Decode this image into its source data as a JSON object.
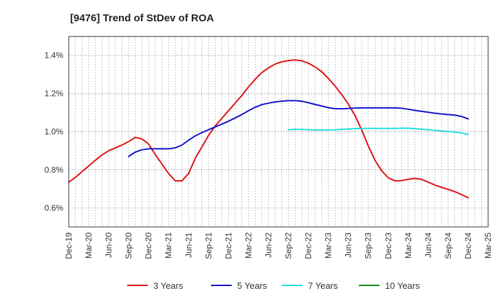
{
  "chart_data": {
    "type": "line",
    "title": "[9476]  Trend of StDev of ROA",
    "xlabel": "",
    "ylabel": "",
    "grid": true,
    "legend_position": "bottom",
    "x_ticks": [
      "Dec-19",
      "Mar-20",
      "Jun-20",
      "Sep-20",
      "Dec-20",
      "Mar-21",
      "Jun-21",
      "Sep-21",
      "Dec-21",
      "Mar-22",
      "Jun-22",
      "Sep-22",
      "Dec-22",
      "Mar-23",
      "Jun-23",
      "Sep-23",
      "Dec-23",
      "Mar-24",
      "Jun-24",
      "Sep-24",
      "Dec-24",
      "Mar-25"
    ],
    "y_ticks": [
      0.6,
      0.8,
      1.0,
      1.2,
      1.4
    ],
    "y_tick_labels": [
      "0.6%",
      "0.8%",
      "1.0%",
      "1.2%",
      "1.4%"
    ],
    "ylim": [
      0.5,
      1.5
    ],
    "series": [
      {
        "name": "3 Years",
        "color": "#dd1111",
        "values": [
          [
            "Dec-19",
            0.735
          ],
          [
            "Jan-20",
            0.76
          ],
          [
            "Feb-20",
            0.79
          ],
          [
            "Mar-20",
            0.82
          ],
          [
            "Apr-20",
            0.85
          ],
          [
            "May-20",
            0.878
          ],
          [
            "Jun-20",
            0.9
          ],
          [
            "Jul-20",
            0.915
          ],
          [
            "Aug-20",
            0.93
          ],
          [
            "Sep-20",
            0.948
          ],
          [
            "Oct-20",
            0.97
          ],
          [
            "Nov-20",
            0.962
          ],
          [
            "Dec-20",
            0.935
          ],
          [
            "Jan-21",
            0.88
          ],
          [
            "Feb-21",
            0.83
          ],
          [
            "Mar-21",
            0.78
          ],
          [
            "Apr-21",
            0.742
          ],
          [
            "May-21",
            0.742
          ],
          [
            "Jun-21",
            0.78
          ],
          [
            "Jul-21",
            0.86
          ],
          [
            "Aug-21",
            0.92
          ],
          [
            "Sep-21",
            0.98
          ],
          [
            "Oct-21",
            1.03
          ],
          [
            "Nov-21",
            1.07
          ],
          [
            "Dec-21",
            1.11
          ],
          [
            "Jan-22",
            1.15
          ],
          [
            "Feb-22",
            1.19
          ],
          [
            "Mar-22",
            1.235
          ],
          [
            "Apr-22",
            1.275
          ],
          [
            "May-22",
            1.31
          ],
          [
            "Jun-22",
            1.335
          ],
          [
            "Jul-22",
            1.355
          ],
          [
            "Aug-22",
            1.367
          ],
          [
            "Sep-22",
            1.373
          ],
          [
            "Oct-22",
            1.377
          ],
          [
            "Nov-22",
            1.372
          ],
          [
            "Dec-22",
            1.36
          ],
          [
            "Jan-23",
            1.34
          ],
          [
            "Feb-23",
            1.315
          ],
          [
            "Mar-23",
            1.28
          ],
          [
            "Apr-23",
            1.24
          ],
          [
            "May-23",
            1.195
          ],
          [
            "Jun-23",
            1.145
          ],
          [
            "Jul-23",
            1.085
          ],
          [
            "Aug-23",
            1.01
          ],
          [
            "Sep-23",
            0.925
          ],
          [
            "Oct-23",
            0.85
          ],
          [
            "Nov-23",
            0.795
          ],
          [
            "Dec-23",
            0.758
          ],
          [
            "Jan-24",
            0.742
          ],
          [
            "Feb-24",
            0.743
          ],
          [
            "Mar-24",
            0.75
          ],
          [
            "Apr-24",
            0.755
          ],
          [
            "May-24",
            0.75
          ],
          [
            "Jun-24",
            0.735
          ],
          [
            "Jul-24",
            0.72
          ],
          [
            "Aug-24",
            0.708
          ],
          [
            "Sep-24",
            0.697
          ],
          [
            "Oct-24",
            0.685
          ],
          [
            "Nov-24",
            0.67
          ],
          [
            "Dec-24",
            0.653
          ]
        ]
      },
      {
        "name": "5 Years",
        "color": "#1111cc",
        "values": [
          [
            "Sep-20",
            0.87
          ],
          [
            "Oct-20",
            0.893
          ],
          [
            "Nov-20",
            0.905
          ],
          [
            "Dec-20",
            0.91
          ],
          [
            "Jan-21",
            0.91
          ],
          [
            "Feb-21",
            0.91
          ],
          [
            "Mar-21",
            0.91
          ],
          [
            "Apr-21",
            0.915
          ],
          [
            "May-21",
            0.93
          ],
          [
            "Jun-21",
            0.955
          ],
          [
            "Jul-21",
            0.978
          ],
          [
            "Aug-21",
            0.995
          ],
          [
            "Sep-21",
            1.01
          ],
          [
            "Oct-21",
            1.025
          ],
          [
            "Nov-21",
            1.04
          ],
          [
            "Dec-21",
            1.055
          ],
          [
            "Jan-22",
            1.072
          ],
          [
            "Feb-22",
            1.09
          ],
          [
            "Mar-22",
            1.11
          ],
          [
            "Apr-22",
            1.128
          ],
          [
            "May-22",
            1.142
          ],
          [
            "Jun-22",
            1.15
          ],
          [
            "Jul-22",
            1.156
          ],
          [
            "Aug-22",
            1.16
          ],
          [
            "Sep-22",
            1.163
          ],
          [
            "Oct-22",
            1.163
          ],
          [
            "Nov-22",
            1.16
          ],
          [
            "Dec-22",
            1.152
          ],
          [
            "Jan-23",
            1.143
          ],
          [
            "Feb-23",
            1.135
          ],
          [
            "Mar-23",
            1.126
          ],
          [
            "Apr-23",
            1.121
          ],
          [
            "May-23",
            1.12
          ],
          [
            "Jun-23",
            1.122
          ],
          [
            "Jul-23",
            1.124
          ],
          [
            "Aug-23",
            1.125
          ],
          [
            "Sep-23",
            1.125
          ],
          [
            "Oct-23",
            1.125
          ],
          [
            "Nov-23",
            1.125
          ],
          [
            "Dec-23",
            1.125
          ],
          [
            "Jan-24",
            1.125
          ],
          [
            "Feb-24",
            1.123
          ],
          [
            "Mar-24",
            1.118
          ],
          [
            "Apr-24",
            1.112
          ],
          [
            "May-24",
            1.107
          ],
          [
            "Jun-24",
            1.102
          ],
          [
            "Jul-24",
            1.097
          ],
          [
            "Aug-24",
            1.093
          ],
          [
            "Sep-24",
            1.09
          ],
          [
            "Oct-24",
            1.087
          ],
          [
            "Nov-24",
            1.08
          ],
          [
            "Dec-24",
            1.067
          ]
        ]
      },
      {
        "name": "7 Years",
        "color": "#22dddd",
        "values": [
          [
            "Sep-22",
            1.01
          ],
          [
            "Oct-22",
            1.012
          ],
          [
            "Nov-22",
            1.012
          ],
          [
            "Dec-22",
            1.01
          ],
          [
            "Jan-23",
            1.009
          ],
          [
            "Feb-23",
            1.009
          ],
          [
            "Mar-23",
            1.009
          ],
          [
            "Apr-23",
            1.01
          ],
          [
            "May-23",
            1.012
          ],
          [
            "Jun-23",
            1.014
          ],
          [
            "Jul-23",
            1.016
          ],
          [
            "Aug-23",
            1.017
          ],
          [
            "Sep-23",
            1.017
          ],
          [
            "Oct-23",
            1.017
          ],
          [
            "Nov-23",
            1.017
          ],
          [
            "Dec-23",
            1.017
          ],
          [
            "Jan-24",
            1.017
          ],
          [
            "Feb-24",
            1.018
          ],
          [
            "Mar-24",
            1.018
          ],
          [
            "Apr-24",
            1.016
          ],
          [
            "May-24",
            1.013
          ],
          [
            "Jun-24",
            1.01
          ],
          [
            "Jul-24",
            1.007
          ],
          [
            "Aug-24",
            1.004
          ],
          [
            "Sep-24",
            1.001
          ],
          [
            "Oct-24",
            0.998
          ],
          [
            "Nov-24",
            0.993
          ],
          [
            "Dec-24",
            0.985
          ]
        ]
      },
      {
        "name": "10 Years",
        "color": "#118811",
        "values": []
      }
    ]
  }
}
